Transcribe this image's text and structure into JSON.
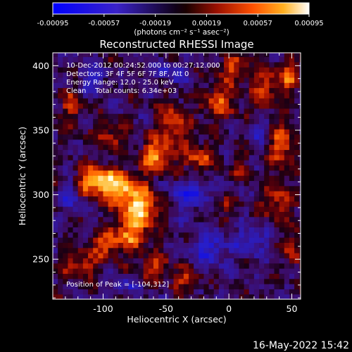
{
  "chart_data": {
    "type": "heatmap",
    "title": "Reconstructed RHESSI Image",
    "xlabel": "Heliocentric X (arcsec)",
    "ylabel": "Heliocentric Y (arcsec)",
    "xlim": [
      -140,
      57
    ],
    "ylim": [
      219,
      410
    ],
    "x_ticks": [
      -100,
      -50,
      0,
      50
    ],
    "y_ticks": [
      250,
      300,
      350,
      400
    ],
    "x_tick_labels": [
      "-100",
      "-50",
      "0",
      "50"
    ],
    "y_tick_labels": [
      "250",
      "300",
      "350",
      "400"
    ],
    "colorbar": {
      "min": -0.00095,
      "max": 0.00095,
      "ticks": [
        -0.00095,
        -0.00057,
        -0.00019,
        0.00019,
        0.00057,
        0.00095
      ],
      "tick_labels": [
        "-0.00095",
        "-0.00057",
        "-0.00019",
        "0.00019",
        "0.00057",
        "0.00095"
      ],
      "units_label": "(photons cm⁻² s⁻¹ asec⁻²)"
    },
    "annotations": [
      "10-Dec-2012 00:24:52.000 to 00:27:12.000",
      "Detectors: 3F 4F 5F 6F 7F 8F, Att 0",
      "Energy Range: 12.0 - 25.0 keV",
      "Clean    Total counts: 6.34e+03",
      "Position of Peak = [-104,312]"
    ],
    "peak": [
      -104,
      312
    ],
    "grid": false,
    "legend": "colorbar top",
    "sources": [
      {
        "x": -105,
        "y": 311,
        "sx": 12,
        "sy": 8,
        "amp": 1.0
      },
      {
        "x": -85,
        "y": 303,
        "sx": 10,
        "sy": 9,
        "amp": 0.8
      },
      {
        "x": -68,
        "y": 291,
        "sx": 9,
        "sy": 10,
        "amp": 0.85
      },
      {
        "x": -78,
        "y": 272,
        "sx": 9,
        "sy": 11,
        "amp": 0.75
      },
      {
        "x": -98,
        "y": 262,
        "sx": 8,
        "sy": 7,
        "amp": 0.6
      },
      {
        "x": -118,
        "y": 246,
        "sx": 10,
        "sy": 7,
        "amp": 0.55
      },
      {
        "x": -58,
        "y": 330,
        "sx": 9,
        "sy": 9,
        "amp": 0.8
      },
      {
        "x": -45,
        "y": 356,
        "sx": 8,
        "sy": 10,
        "amp": 0.7
      },
      {
        "x": -25,
        "y": 330,
        "sx": 9,
        "sy": 8,
        "amp": 0.6
      },
      {
        "x": -8,
        "y": 372,
        "sx": 10,
        "sy": 10,
        "amp": 0.6
      },
      {
        "x": 5,
        "y": 398,
        "sx": 8,
        "sy": 7,
        "amp": 0.55
      },
      {
        "x": 28,
        "y": 383,
        "sx": 7,
        "sy": 12,
        "amp": 0.55
      },
      {
        "x": 48,
        "y": 392,
        "sx": 6,
        "sy": 9,
        "amp": 0.6
      },
      {
        "x": 42,
        "y": 338,
        "sx": 7,
        "sy": 12,
        "amp": 0.65
      },
      {
        "x": 38,
        "y": 295,
        "sx": 8,
        "sy": 10,
        "amp": 0.55
      },
      {
        "x": 52,
        "y": 258,
        "sx": 5,
        "sy": 9,
        "amp": 0.5
      },
      {
        "x": -60,
        "y": 245,
        "sx": 9,
        "sy": 7,
        "amp": 0.55
      },
      {
        "x": -35,
        "y": 235,
        "sx": 8,
        "sy": 6,
        "amp": 0.45
      },
      {
        "x": -125,
        "y": 370,
        "sx": 7,
        "sy": 10,
        "amp": 0.45
      },
      {
        "x": -95,
        "y": 345,
        "sx": 8,
        "sy": 7,
        "amp": 0.45
      },
      {
        "x": -5,
        "y": 292,
        "sx": 7,
        "sy": 6,
        "amp": 0.35
      },
      {
        "x": 10,
        "y": 320,
        "sx": 6,
        "sy": 6,
        "amp": 0.35
      }
    ],
    "negatives": [
      {
        "x": -30,
        "y": 300,
        "sx": 12,
        "sy": 8,
        "amp": 0.55
      },
      {
        "x": -15,
        "y": 258,
        "sx": 10,
        "sy": 9,
        "amp": 0.5
      },
      {
        "x": 18,
        "y": 265,
        "sx": 9,
        "sy": 8,
        "amp": 0.45
      },
      {
        "x": -110,
        "y": 390,
        "sx": 8,
        "sy": 8,
        "amp": 0.4
      },
      {
        "x": -45,
        "y": 395,
        "sx": 10,
        "sy": 6,
        "amp": 0.4
      },
      {
        "x": -125,
        "y": 300,
        "sx": 6,
        "sy": 10,
        "amp": 0.4
      },
      {
        "x": 25,
        "y": 350,
        "sx": 6,
        "sy": 6,
        "amp": 0.35
      },
      {
        "x": -80,
        "y": 230,
        "sx": 8,
        "sy": 5,
        "amp": 0.35
      }
    ]
  },
  "footer": {
    "datetime": "16-May-2022 15:42"
  },
  "colors": {
    "background": "#000000",
    "foreground": "#ffffff",
    "colormap_low": "#0000ff",
    "colormap_mid": "#000000",
    "colormap_high": "#ffffff"
  }
}
